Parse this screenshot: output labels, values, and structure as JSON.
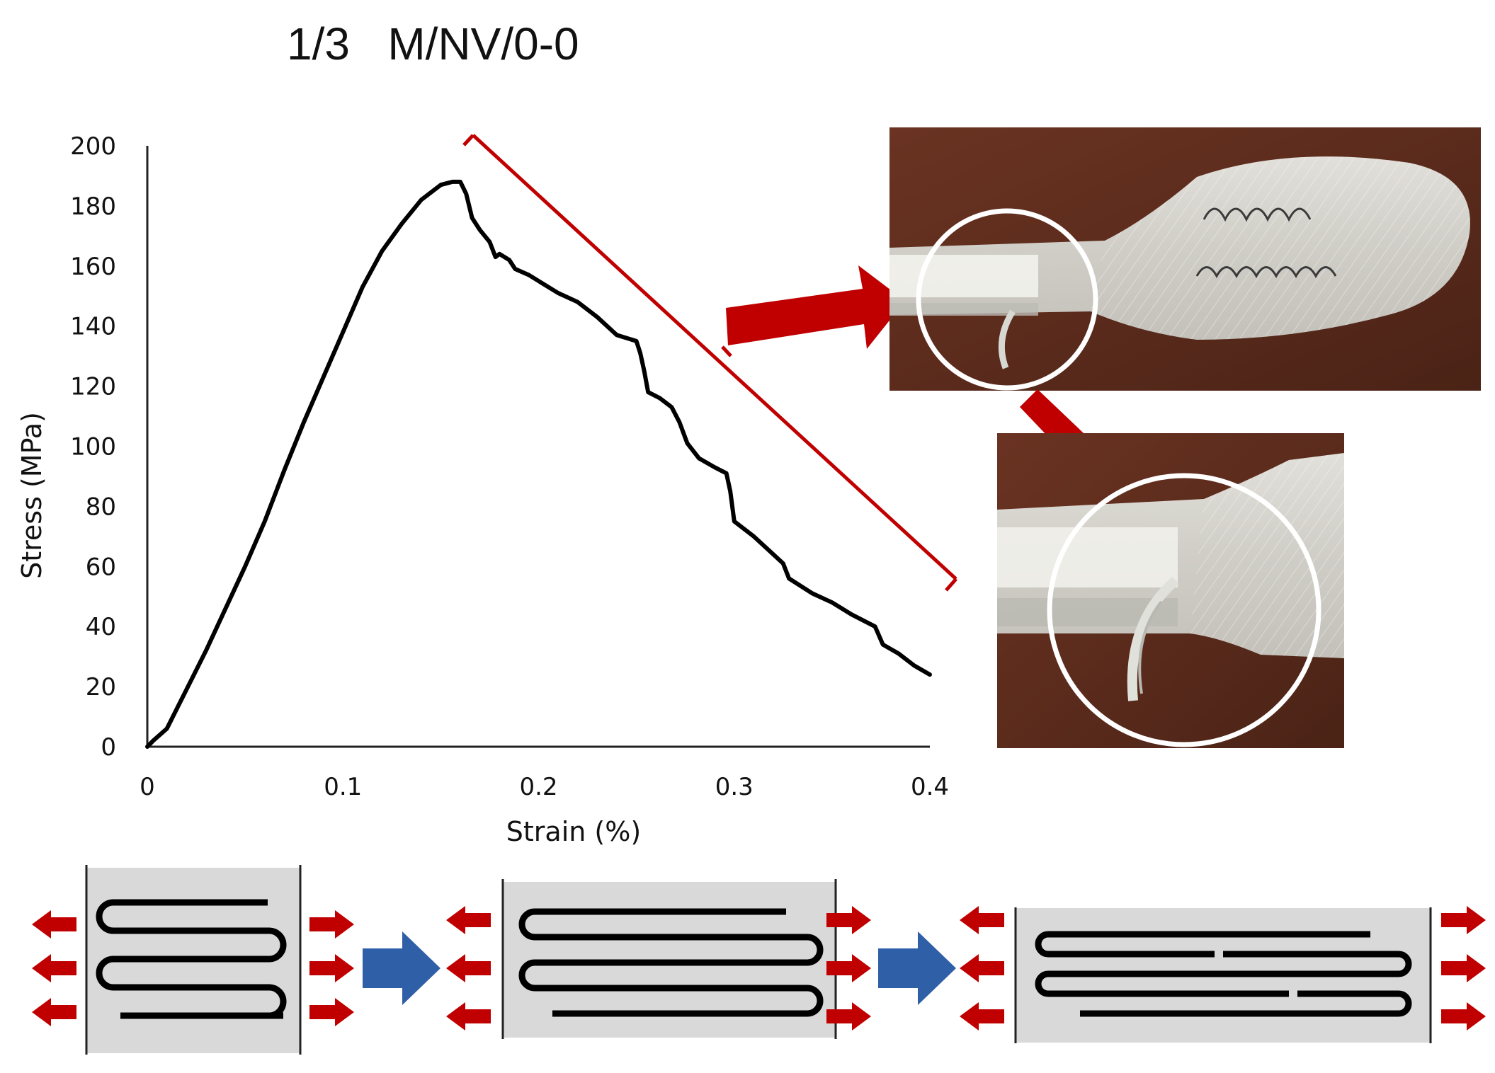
{
  "chart_data": {
    "type": "line",
    "title": "1/3   M/NV/0-0",
    "xlabel": "Strain (%)",
    "ylabel": "Stress (MPa)",
    "xlim": [
      0,
      0.4
    ],
    "ylim": [
      0,
      200
    ],
    "x_ticks": [
      "0",
      "0.1",
      "0.2",
      "0.3",
      "0.4"
    ],
    "y_ticks": [
      "0",
      "20",
      "40",
      "60",
      "80",
      "100",
      "120",
      "140",
      "160",
      "180",
      "200"
    ],
    "grid": false,
    "series": [
      {
        "color": "#000000",
        "points": [
          [
            0.0,
            0
          ],
          [
            0.003,
            2
          ],
          [
            0.01,
            6
          ],
          [
            0.02,
            19
          ],
          [
            0.03,
            32
          ],
          [
            0.04,
            46
          ],
          [
            0.05,
            60
          ],
          [
            0.06,
            75
          ],
          [
            0.07,
            92
          ],
          [
            0.08,
            108
          ],
          [
            0.09,
            123
          ],
          [
            0.1,
            138
          ],
          [
            0.11,
            153
          ],
          [
            0.12,
            165
          ],
          [
            0.13,
            174
          ],
          [
            0.14,
            182
          ],
          [
            0.15,
            187
          ],
          [
            0.156,
            188
          ],
          [
            0.16,
            188
          ],
          [
            0.163,
            184
          ],
          [
            0.166,
            176
          ],
          [
            0.17,
            172
          ],
          [
            0.175,
            168
          ],
          [
            0.178,
            163
          ],
          [
            0.18,
            164
          ],
          [
            0.185,
            162
          ],
          [
            0.188,
            159
          ],
          [
            0.195,
            157
          ],
          [
            0.2,
            155
          ],
          [
            0.21,
            151
          ],
          [
            0.22,
            148
          ],
          [
            0.23,
            143
          ],
          [
            0.24,
            137
          ],
          [
            0.25,
            135
          ],
          [
            0.252,
            131
          ],
          [
            0.254,
            125
          ],
          [
            0.256,
            118
          ],
          [
            0.262,
            116
          ],
          [
            0.268,
            113
          ],
          [
            0.272,
            108
          ],
          [
            0.276,
            101
          ],
          [
            0.282,
            96
          ],
          [
            0.29,
            93
          ],
          [
            0.296,
            91
          ],
          [
            0.298,
            85
          ],
          [
            0.3,
            75
          ],
          [
            0.31,
            70
          ],
          [
            0.32,
            64
          ],
          [
            0.325,
            61
          ],
          [
            0.328,
            56
          ],
          [
            0.34,
            51
          ],
          [
            0.35,
            48
          ],
          [
            0.36,
            44
          ],
          [
            0.372,
            40
          ],
          [
            0.376,
            34
          ],
          [
            0.384,
            31
          ],
          [
            0.392,
            27
          ],
          [
            0.4,
            24
          ]
        ]
      }
    ],
    "annotations": [
      "red bracket spanning the post-peak drop region, arrows to specimen photos",
      "schematic of filament loops under tension (three stages, red tension arrows, blue progression arrows)"
    ]
  },
  "colors": {
    "curve": "#000000",
    "bracket": "#c00000",
    "arrow_red": "#c00000",
    "arrow_blue": "#2f5fa7",
    "panel_gray": "#d9d9d9",
    "photo_bg": "#5a2e1e"
  }
}
